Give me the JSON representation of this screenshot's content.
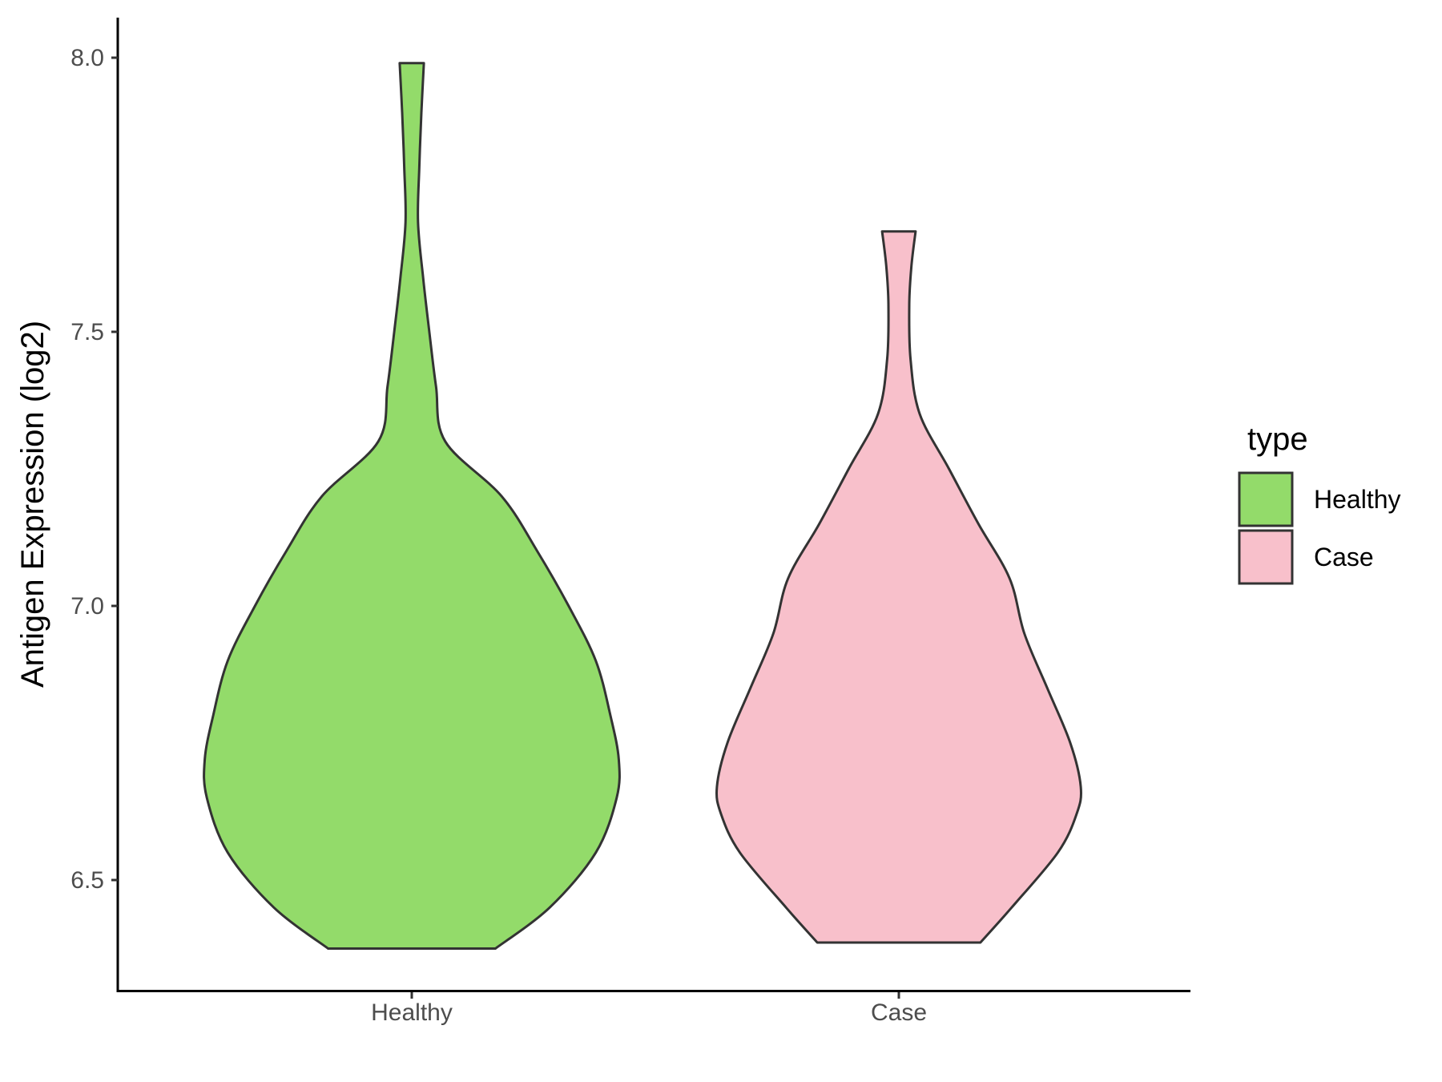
{
  "chart_data": {
    "type": "violin",
    "title": "",
    "xlabel": "",
    "ylabel": "Antigen Expression (log2)",
    "ylim": [
      6.3,
      8.07
    ],
    "yticks": [
      6.5,
      7.0,
      7.5,
      8.0
    ],
    "ytick_labels": [
      "6.5",
      "7.0",
      "7.5",
      "8.0"
    ],
    "categories": [
      "Healthy",
      "Case"
    ],
    "grid": false,
    "legend": {
      "title": "type",
      "position": "right",
      "entries": [
        {
          "label": "Healthy",
          "color": "#93DB6A"
        },
        {
          "label": "Case",
          "color": "#F8C0CB"
        }
      ]
    },
    "series": [
      {
        "category": "Healthy",
        "color": "#93DB6A",
        "min": 6.375,
        "max": 7.99,
        "profile": [
          [
            6.375,
            0.2
          ],
          [
            6.45,
            0.33
          ],
          [
            6.55,
            0.44
          ],
          [
            6.65,
            0.49
          ],
          [
            6.72,
            0.495
          ],
          [
            6.8,
            0.475
          ],
          [
            6.9,
            0.44
          ],
          [
            7.0,
            0.375
          ],
          [
            7.1,
            0.3
          ],
          [
            7.2,
            0.215
          ],
          [
            7.3,
            0.08
          ],
          [
            7.4,
            0.058
          ],
          [
            7.5,
            0.042
          ],
          [
            7.6,
            0.027
          ],
          [
            7.7,
            0.015
          ],
          [
            7.8,
            0.018
          ],
          [
            7.9,
            0.023
          ],
          [
            7.99,
            0.029
          ]
        ]
      },
      {
        "category": "Case",
        "color": "#F8C0CB",
        "min": 6.386,
        "max": 7.683,
        "profile": [
          [
            6.386,
            0.195
          ],
          [
            6.45,
            0.27
          ],
          [
            6.55,
            0.38
          ],
          [
            6.62,
            0.425
          ],
          [
            6.67,
            0.435
          ],
          [
            6.75,
            0.41
          ],
          [
            6.85,
            0.355
          ],
          [
            6.95,
            0.3
          ],
          [
            7.05,
            0.265
          ],
          [
            7.15,
            0.19
          ],
          [
            7.25,
            0.12
          ],
          [
            7.35,
            0.05
          ],
          [
            7.45,
            0.028
          ],
          [
            7.55,
            0.025
          ],
          [
            7.62,
            0.03
          ],
          [
            7.683,
            0.04
          ]
        ]
      }
    ]
  }
}
